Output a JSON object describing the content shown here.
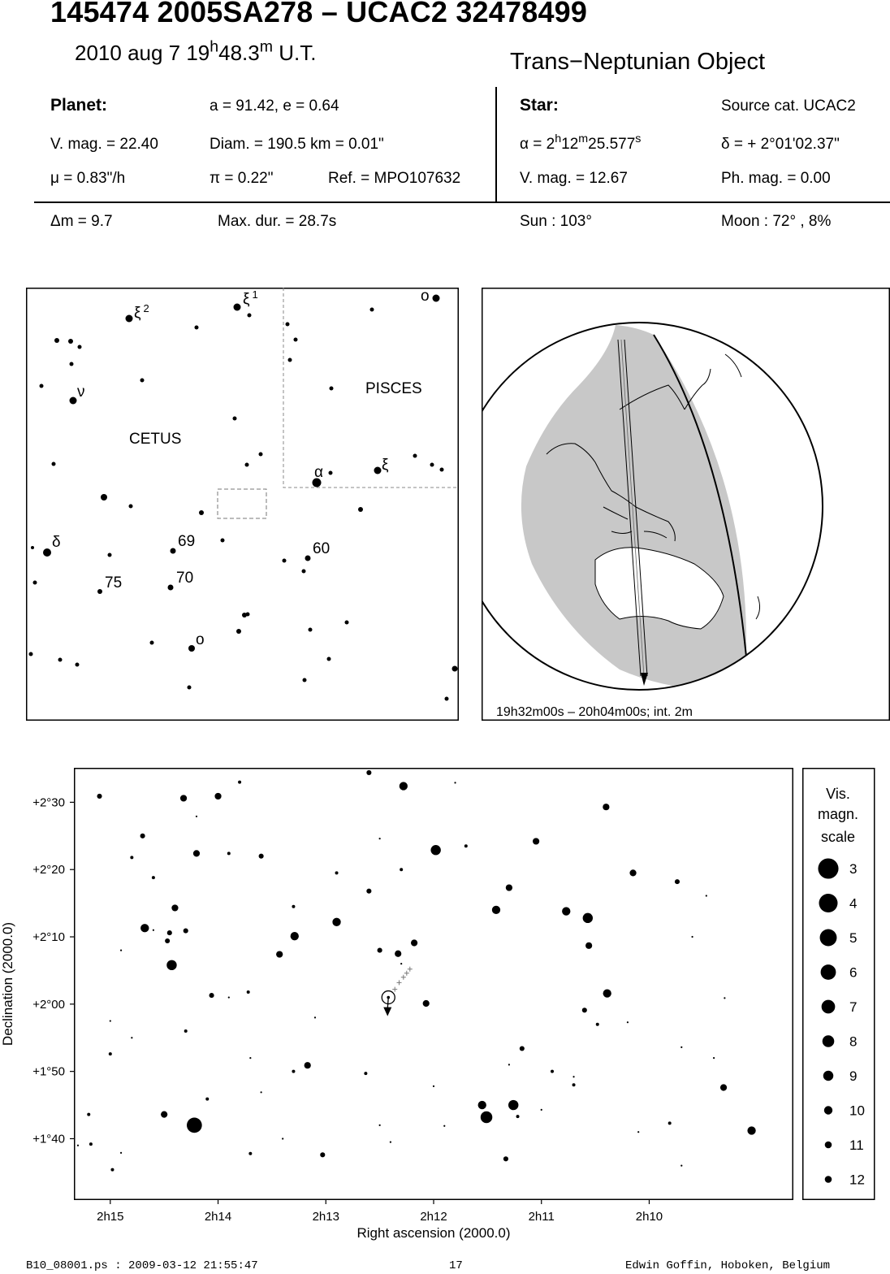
{
  "header": {
    "title": "145474 2005SA278  –  UCAC2 32478499",
    "date": "2010 aug  7  19",
    "time_h_sup": "h",
    "time_min": "48.3",
    "time_m_sup": "m",
    "time_suffix": " U.T.",
    "object_type": "Trans−Neptunian Object"
  },
  "planet": {
    "heading": "Planet:",
    "orbit": "a = 91.42, e = 0.64",
    "vmag": "V. mag. = 22.40",
    "diam": "Diam. = 190.5 km = 0.01\"",
    "mu": "μ =  0.83\"/h",
    "pi": "π =  0.22\"",
    "ref": "Ref. = MPO107632"
  },
  "star": {
    "heading": "Star:",
    "source": "Source cat.  UCAC2",
    "ra_prefix": "α =  2",
    "ra_h": "h",
    "ra_mid": "12",
    "ra_m": "m",
    "ra_sec": "25.577",
    "ra_s": "s",
    "dec": "δ = + 2°01'02.37\"",
    "vmag": "V. mag. = 12.67",
    "phmag": "Ph. mag. =  0.00"
  },
  "event": {
    "dm": "Δm = 9.7",
    "maxdur": "Max. dur. = 28.7s",
    "sun": "Sun : 103°",
    "moon": "Moon :  72° ,  8%"
  },
  "finder": {
    "constellations": [
      "CETUS",
      "PISCES"
    ],
    "star_labels": [
      {
        "label": "ξ",
        "sup": "2"
      },
      {
        "label": "ξ",
        "sup": "1"
      },
      {
        "label": "o",
        "sup": ""
      },
      {
        "label": "ν",
        "sup": ""
      },
      {
        "label": "α",
        "sup": ""
      },
      {
        "label": "ξ",
        "sup": ""
      },
      {
        "label": "δ",
        "sup": ""
      },
      {
        "label": "69",
        "sup": ""
      },
      {
        "label": "60",
        "sup": ""
      },
      {
        "label": "75",
        "sup": ""
      },
      {
        "label": "70",
        "sup": ""
      },
      {
        "label": "o",
        "sup": ""
      }
    ]
  },
  "globe": {
    "caption": "19h32m00s – 20h04m00s; int.  2m"
  },
  "chart_data": {
    "type": "scatter",
    "xlabel": "Right ascension (2000.0)",
    "ylabel": "Declination (2000.0)",
    "x_ticks": [
      "2h15",
      "2h14",
      "2h13",
      "2h12",
      "2h11",
      "2h10"
    ],
    "y_ticks": [
      "+2°30",
      "+2°20",
      "+2°10",
      "+2°00",
      "+1°50",
      "+1°40"
    ],
    "xlim_min": [
      15.33,
      8.67
    ],
    "ylim_arcmin": [
      91.0,
      155.0
    ],
    "target": {
      "ra_min": 12.42,
      "dec_arcmin": 121.0
    },
    "track": [
      [
        12.42,
        121.0
      ],
      [
        12.36,
        122.2
      ],
      [
        12.32,
        123.2
      ],
      [
        12.28,
        124.0
      ],
      [
        12.25,
        124.6
      ],
      [
        12.22,
        125.2
      ]
    ],
    "stars": [
      [
        15.1,
        150.9,
        9
      ],
      [
        14.7,
        145.0,
        9
      ],
      [
        14.3,
        130.9,
        9
      ],
      [
        14.4,
        134.3,
        8
      ],
      [
        14.0,
        150.9,
        8
      ],
      [
        13.9,
        121.0,
        11
      ],
      [
        14.6,
        138.8,
        10
      ],
      [
        14.8,
        141.8,
        10
      ],
      [
        14.2,
        142.4,
        8
      ],
      [
        13.3,
        134.5,
        10
      ],
      [
        13.9,
        142.4,
        10
      ],
      [
        12.6,
        136.8,
        9
      ],
      [
        12.5,
        144.6,
        11
      ],
      [
        11.7,
        143.5,
        10
      ],
      [
        10.6,
        119.1,
        9
      ],
      [
        10.7,
        109.2,
        11
      ],
      [
        9.7,
        113.6,
        11
      ],
      [
        12.6,
        154.4,
        9
      ],
      [
        11.8,
        152.9,
        11
      ],
      [
        12.9,
        139.5,
        10
      ],
      [
        14.3,
        116.0,
        10
      ],
      [
        14.9,
        97.9,
        12
      ],
      [
        14.5,
        103.6,
        8
      ],
      [
        15.2,
        103.6,
        10
      ],
      [
        13.6,
        106.9,
        11
      ],
      [
        12.0,
        107.8,
        11
      ],
      [
        11.0,
        104.3,
        11
      ],
      [
        12.3,
        140.0,
        10
      ],
      [
        10.9,
        110.0,
        10
      ],
      [
        13.3,
        110.0,
        10
      ],
      [
        14.8,
        115.0,
        12
      ],
      [
        15.0,
        117.5,
        11
      ],
      [
        14.2,
        147.9,
        11
      ],
      [
        14.5,
        157.6,
        11
      ],
      [
        13.0,
        157.3,
        10
      ],
      [
        12.4,
        99.5,
        11
      ],
      [
        12.5,
        128.0,
        9
      ],
      [
        13.4,
        100.0,
        11
      ],
      [
        9.4,
        112.0,
        11
      ],
      [
        15.3,
        99.0,
        12
      ],
      [
        14.9,
        128.0,
        12
      ],
      [
        10.2,
        117.3,
        11
      ],
      [
        13.7,
        112.0,
        11
      ],
      [
        13.8,
        153.0,
        10
      ],
      [
        9.6,
        130.0,
        11
      ],
      [
        9.3,
        120.9,
        12
      ],
      [
        14.6,
        131.0,
        11
      ],
      [
        13.1,
        118.0,
        12
      ],
      [
        11.3,
        111.0,
        11
      ],
      [
        10.1,
        101.0,
        11
      ],
      [
        11.9,
        101.9,
        11
      ],
      [
        14.1,
        105.9,
        10
      ],
      [
        15.0,
        112.6,
        10
      ],
      [
        9.7,
        96.0,
        12
      ]
    ],
    "bright_stars": [
      [
        14.68,
        131.3,
        7
      ],
      [
        14.43,
        125.8,
        6
      ],
      [
        14.32,
        150.6,
        8
      ],
      [
        14.06,
        121.3,
        9
      ],
      [
        13.43,
        127.4,
        8
      ],
      [
        13.29,
        130.1,
        7
      ],
      [
        12.9,
        132.2,
        7
      ],
      [
        12.33,
        127.5,
        8
      ],
      [
        12.18,
        129.1,
        8
      ],
      [
        11.98,
        142.9,
        6
      ],
      [
        11.42,
        134.0,
        7
      ],
      [
        11.3,
        137.3,
        8
      ],
      [
        11.05,
        144.2,
        8
      ],
      [
        10.77,
        133.8,
        7
      ],
      [
        10.4,
        149.3,
        8
      ],
      [
        10.15,
        139.5,
        8
      ],
      [
        9.74,
        138.2,
        9
      ],
      [
        9.47,
        136.1,
        11
      ],
      [
        12.07,
        120.1,
        8
      ],
      [
        11.18,
        113.4,
        9
      ],
      [
        10.39,
        121.6,
        7
      ],
      [
        10.48,
        117.0,
        10
      ],
      [
        10.56,
        128.7,
        8
      ],
      [
        9.31,
        107.6,
        8
      ],
      [
        11.55,
        105.0,
        7
      ],
      [
        12.5,
        102.0,
        11
      ],
      [
        13.17,
        110.9,
        8
      ],
      [
        12.63,
        109.7,
        10
      ],
      [
        13.72,
        121.8,
        10
      ],
      [
        13.03,
        97.6,
        9
      ],
      [
        11.33,
        97.0,
        9
      ],
      [
        13.7,
        97.8,
        10
      ],
      [
        14.98,
        95.4,
        10
      ],
      [
        15.18,
        99.2,
        10
      ],
      [
        9.81,
        102.3,
        10
      ],
      [
        10.7,
        108.0,
        10
      ],
      [
        11.22,
        103.3,
        10
      ],
      [
        12.3,
        126.0,
        11
      ],
      [
        14.45,
        130.6,
        9
      ],
      [
        14.47,
        129.4,
        9
      ]
    ],
    "highlight": [
      [
        14.22,
        102.0,
        3
      ],
      [
        11.51,
        103.2,
        5
      ],
      [
        11.26,
        105.0,
        6
      ],
      [
        10.57,
        132.8,
        6
      ],
      [
        12.28,
        152.4,
        7
      ],
      [
        13.6,
        142.0,
        9
      ],
      [
        9.05,
        101.2,
        7
      ]
    ],
    "scale_title": [
      "Vis.",
      "magn.",
      "scale"
    ],
    "scale_mags": [
      "3",
      "4",
      "5",
      "6",
      "7",
      "8",
      "9",
      "10",
      "11",
      "12"
    ]
  },
  "footer": {
    "file": "B10_08001.ps : 2009-03-12 21:55:47",
    "page": "17",
    "author": "Edwin Goffin, Hoboken, Belgium"
  }
}
